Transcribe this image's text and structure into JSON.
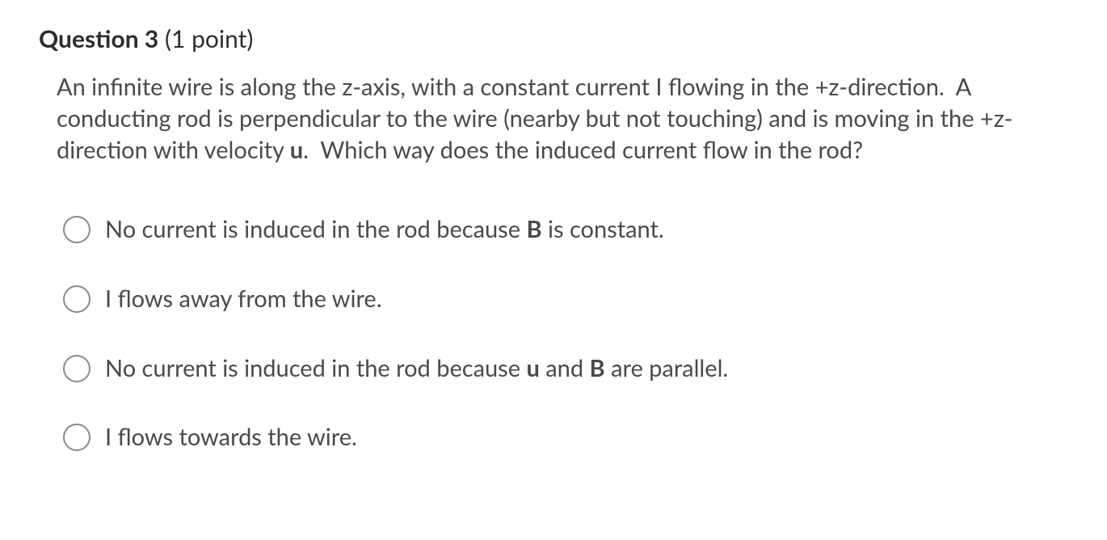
{
  "header": {
    "question_label": "Question 3",
    "points_label": "(1 point)"
  },
  "body": {
    "pre": "An infinite wire is along the z-axis, with a constant current I flowing in the +z-direction.  A conducting rod is perpendicular to the wire (nearby but not touching) and is moving in the +z-direction with velocity ",
    "bold1": "u",
    "post": ".  Which way does the induced current flow in the rod?"
  },
  "options": [
    {
      "html": "No current is induced in the rod because <b>B</b> is constant."
    },
    {
      "html": "I flows away from the wire."
    },
    {
      "html": "No current is induced in the rod because <b>u</b> and <b>B</b> are parallel."
    },
    {
      "html": "I flows towards the wire."
    }
  ],
  "style": {
    "text_color": "#4a4a4a",
    "header_color": "#2d2d2d",
    "radio_border": "#8a8a8a",
    "background": "#ffffff",
    "body_fontsize": 29,
    "header_fontsize": 30
  }
}
